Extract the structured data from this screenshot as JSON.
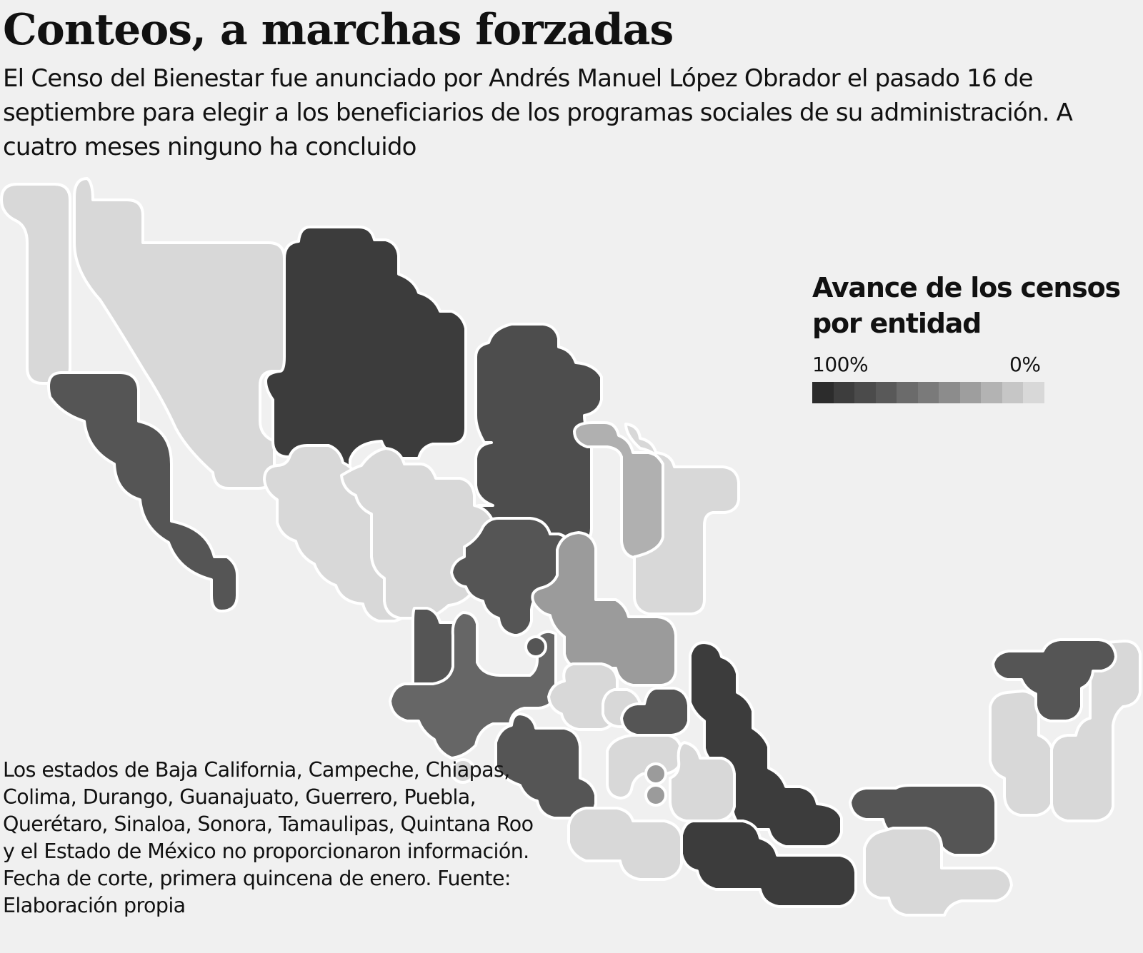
{
  "title": "Conteos, a marchas forzadas",
  "subtitle": "El Censo del Bienestar fue anunciado por Andrés Manuel López Obrador el pasado 16 de septiembre para elegir a los beneficiarios de los programas sociales de su administración. A cuatro meses ninguno ha concluido",
  "legend": {
    "title": "Avance de los censos por entidad",
    "min_label": "100%",
    "max_label": "0%",
    "ramp_colors": [
      "#2c2c2c",
      "#3d3d3d",
      "#4b4b4b",
      "#595959",
      "#6b6b6b",
      "#7a7a7a",
      "#8c8c8c",
      "#9e9e9e",
      "#b3b3b3",
      "#c6c6c6",
      "#d8d8d8"
    ]
  },
  "note": "Los estados de Baja California, Campeche, Chiapas, Colima, Durango, Guanajuato, Guerrero, Puebla, Querétaro, Sinaloa, Sonora, Tamaulipas, Quintana Roo y el Estado de México no proporcionaron información. Fecha de corte, primera quincena de enero. Fuente: Elaboración propia",
  "map_colors": {
    "nodata": "#d8d8d8",
    "high": "#555555",
    "higher": "#4d4d4d",
    "highest": "#3c3c3c",
    "mid": "#666666",
    "low": "#9b9b9b",
    "lighter": "#b0b0b0"
  }
}
